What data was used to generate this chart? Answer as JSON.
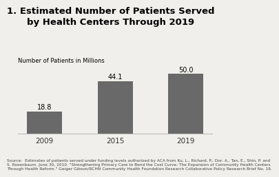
{
  "title": "1. Estimated Number of Patients Served\nby Health Centers Through 2019",
  "ylabel": "Number of Patients in Millions",
  "categories": [
    "2009",
    "2015",
    "2019"
  ],
  "values": [
    18.8,
    44.1,
    50.0
  ],
  "bar_color": "#696969",
  "title_fontsize": 9.5,
  "label_fontsize": 6.0,
  "bar_label_fontsize": 7.0,
  "xtick_fontsize": 7.5,
  "source_text": "Source:  Estimates of patients served under funding levels authorized by ACA from Ku, L., Richard, P., Dor, A., Tan, E., Shin, P. and\nS. Rosenbaum. June 30, 2010. \"Strengthening Primary Care to Bend the Cost Curve: The Expansion of Community Health Centers\nThrough Health Reform.\" Geiger Gibson/RCHN Community Health Foundation Research Collaborative Policy Research Brief No. 19.",
  "source_fontsize": 4.2,
  "ylim": [
    0,
    58
  ],
  "background_color": "#f0efeb"
}
